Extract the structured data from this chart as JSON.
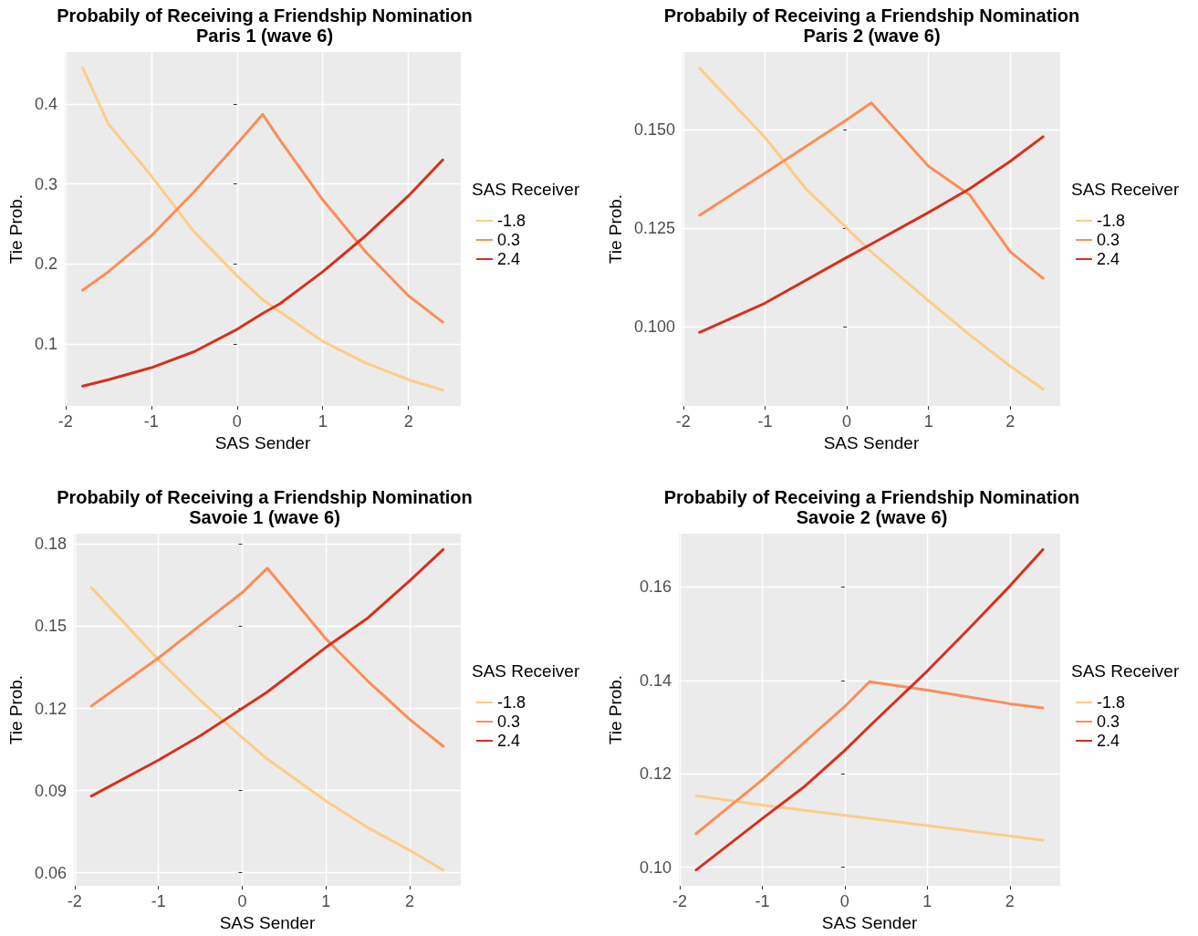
{
  "chart_data": [
    {
      "type": "line",
      "title": "Probabily of Receiving a Friendship Nomination",
      "subtitle": "Paris 1 (wave 6)",
      "xlabel": "SAS Sender",
      "ylabel": "Tie Prob.",
      "legend_title": "SAS Receiver",
      "legend": "right",
      "grid": true,
      "xlim": [
        -2.01,
        2.61
      ],
      "xticks": [
        -2,
        -1,
        0,
        1,
        2
      ],
      "ylim": [
        0.022,
        0.465
      ],
      "yticks": [
        0.1,
        0.2,
        0.3,
        0.4
      ],
      "series": [
        {
          "name": "-1.8",
          "color": "#fdcc8a",
          "x": [
            -1.8,
            -1.5,
            -1,
            -0.5,
            0,
            0.3,
            0.5,
            1,
            1.5,
            2,
            2.4
          ],
          "values": [
            0.445,
            0.375,
            0.31,
            0.24,
            0.185,
            0.155,
            0.14,
            0.103,
            0.076,
            0.055,
            0.042
          ]
        },
        {
          "name": "0.3",
          "color": "#fc8d59",
          "x": [
            -1.8,
            -1.5,
            -1,
            -0.5,
            0,
            0.3,
            0.5,
            1,
            1.5,
            2,
            2.4
          ],
          "values": [
            0.167,
            0.19,
            0.235,
            0.29,
            0.35,
            0.387,
            0.355,
            0.28,
            0.215,
            0.16,
            0.127
          ]
        },
        {
          "name": "2.4",
          "color": "#d7301f",
          "x": [
            -1.8,
            -1.5,
            -1,
            -0.5,
            0,
            0.3,
            0.5,
            1,
            1.5,
            2,
            2.4
          ],
          "values": [
            0.047,
            0.055,
            0.07,
            0.09,
            0.118,
            0.138,
            0.15,
            0.19,
            0.235,
            0.285,
            0.33
          ]
        }
      ]
    },
    {
      "type": "line",
      "title": "Probabily of Receiving a Friendship Nomination",
      "subtitle": "Paris 2 (wave 6)",
      "xlabel": "SAS Sender",
      "ylabel": "Tie Prob.",
      "legend_title": "SAS Receiver",
      "legend": "right",
      "grid": true,
      "xlim": [
        -2.01,
        2.61
      ],
      "xticks": [
        -2,
        -1,
        0,
        1,
        2
      ],
      "ylim": [
        0.0799,
        0.1697
      ],
      "yticks": [
        {
          "value": 0.1,
          "label": "0.100"
        },
        {
          "value": 0.125,
          "label": "0.125"
        },
        {
          "value": 0.15,
          "label": "0.150"
        }
      ],
      "series": [
        {
          "name": "-1.8",
          "color": "#fdcc8a",
          "x": [
            -1.8,
            -1,
            -0.5,
            0,
            0.3,
            1,
            1.5,
            2,
            2.4
          ],
          "values": [
            0.1656,
            0.148,
            0.135,
            0.125,
            0.119,
            0.1066,
            0.098,
            0.09,
            0.0842
          ]
        },
        {
          "name": "0.3",
          "color": "#fc8d59",
          "x": [
            -1.8,
            -1,
            0,
            0.3,
            1,
            1.5,
            2,
            2.4
          ],
          "values": [
            0.1283,
            0.139,
            0.1525,
            0.1568,
            0.1407,
            0.1335,
            0.119,
            0.1123
          ]
        },
        {
          "name": "2.4",
          "color": "#d7301f",
          "x": [
            -1.8,
            -1,
            0,
            0.3,
            1,
            1.5,
            2,
            2.4
          ],
          "values": [
            0.0986,
            0.106,
            0.1176,
            0.121,
            0.129,
            0.135,
            0.142,
            0.1482
          ]
        }
      ]
    },
    {
      "type": "line",
      "title": "Probabily of Receiving a Friendship Nomination",
      "subtitle": "Savoie 1 (wave 6)",
      "xlabel": "SAS Sender",
      "ylabel": "Tie Prob.",
      "legend_title": "SAS Receiver",
      "legend": "right",
      "grid": true,
      "xlim": [
        -2.01,
        2.61
      ],
      "xticks": [
        -2,
        -1,
        0,
        1,
        2
      ],
      "ylim": [
        0.0552,
        0.1838
      ],
      "yticks": [
        0.06,
        0.09,
        0.12,
        0.15,
        0.18
      ],
      "series": [
        {
          "name": "-1.8",
          "color": "#fdcc8a",
          "x": [
            -1.8,
            -1,
            -0.5,
            0,
            0.3,
            1,
            1.5,
            2,
            2.4
          ],
          "values": [
            0.1641,
            0.1378,
            0.123,
            0.1094,
            0.1015,
            0.0862,
            0.0765,
            0.0682,
            0.061
          ]
        },
        {
          "name": "0.3",
          "color": "#fc8d59",
          "x": [
            -1.8,
            -1,
            0,
            0.3,
            1,
            1.5,
            2,
            2.4
          ],
          "values": [
            0.1209,
            0.1384,
            0.1623,
            0.1712,
            0.1454,
            0.13,
            0.116,
            0.1062
          ]
        },
        {
          "name": "2.4",
          "color": "#d7301f",
          "x": [
            -1.8,
            -1,
            -0.5,
            0,
            0.3,
            1,
            1.5,
            2,
            2.4
          ],
          "values": [
            0.088,
            0.1011,
            0.11,
            0.12,
            0.126,
            0.1423,
            0.153,
            0.1666,
            0.178
          ]
        }
      ]
    },
    {
      "type": "line",
      "title": "Probabily of Receiving a Friendship Nomination",
      "subtitle": "Savoie 2 (wave 6)",
      "xlabel": "SAS Sender",
      "ylabel": "Tie Prob.",
      "legend_title": "SAS Receiver",
      "legend": "right",
      "grid": true,
      "xlim": [
        -2.01,
        2.61
      ],
      "xticks": [
        -2,
        -1,
        0,
        1,
        2
      ],
      "ylim": [
        0.096,
        0.1714
      ],
      "yticks": [
        {
          "value": 0.1,
          "label": "0.10"
        },
        0.12,
        0.14,
        0.16
      ],
      "series": [
        {
          "name": "-1.8",
          "color": "#fdcc8a",
          "x": [
            -1.8,
            -1,
            0,
            1,
            2.4
          ],
          "values": [
            0.1153,
            0.1133,
            0.1111,
            0.1089,
            0.1058
          ]
        },
        {
          "name": "0.3",
          "color": "#fc8d59",
          "x": [
            -1.8,
            -1,
            0,
            0.3,
            1,
            2,
            2.4
          ],
          "values": [
            0.1072,
            0.1187,
            0.1344,
            0.1397,
            0.1379,
            0.135,
            0.1341
          ]
        },
        {
          "name": "2.4",
          "color": "#d7301f",
          "x": [
            -1.8,
            -1,
            -0.5,
            0,
            0.3,
            1,
            1.5,
            2,
            2.4
          ],
          "values": [
            0.0994,
            0.1104,
            0.1171,
            0.125,
            0.1302,
            0.142,
            0.151,
            0.1602,
            0.168
          ]
        }
      ]
    }
  ]
}
